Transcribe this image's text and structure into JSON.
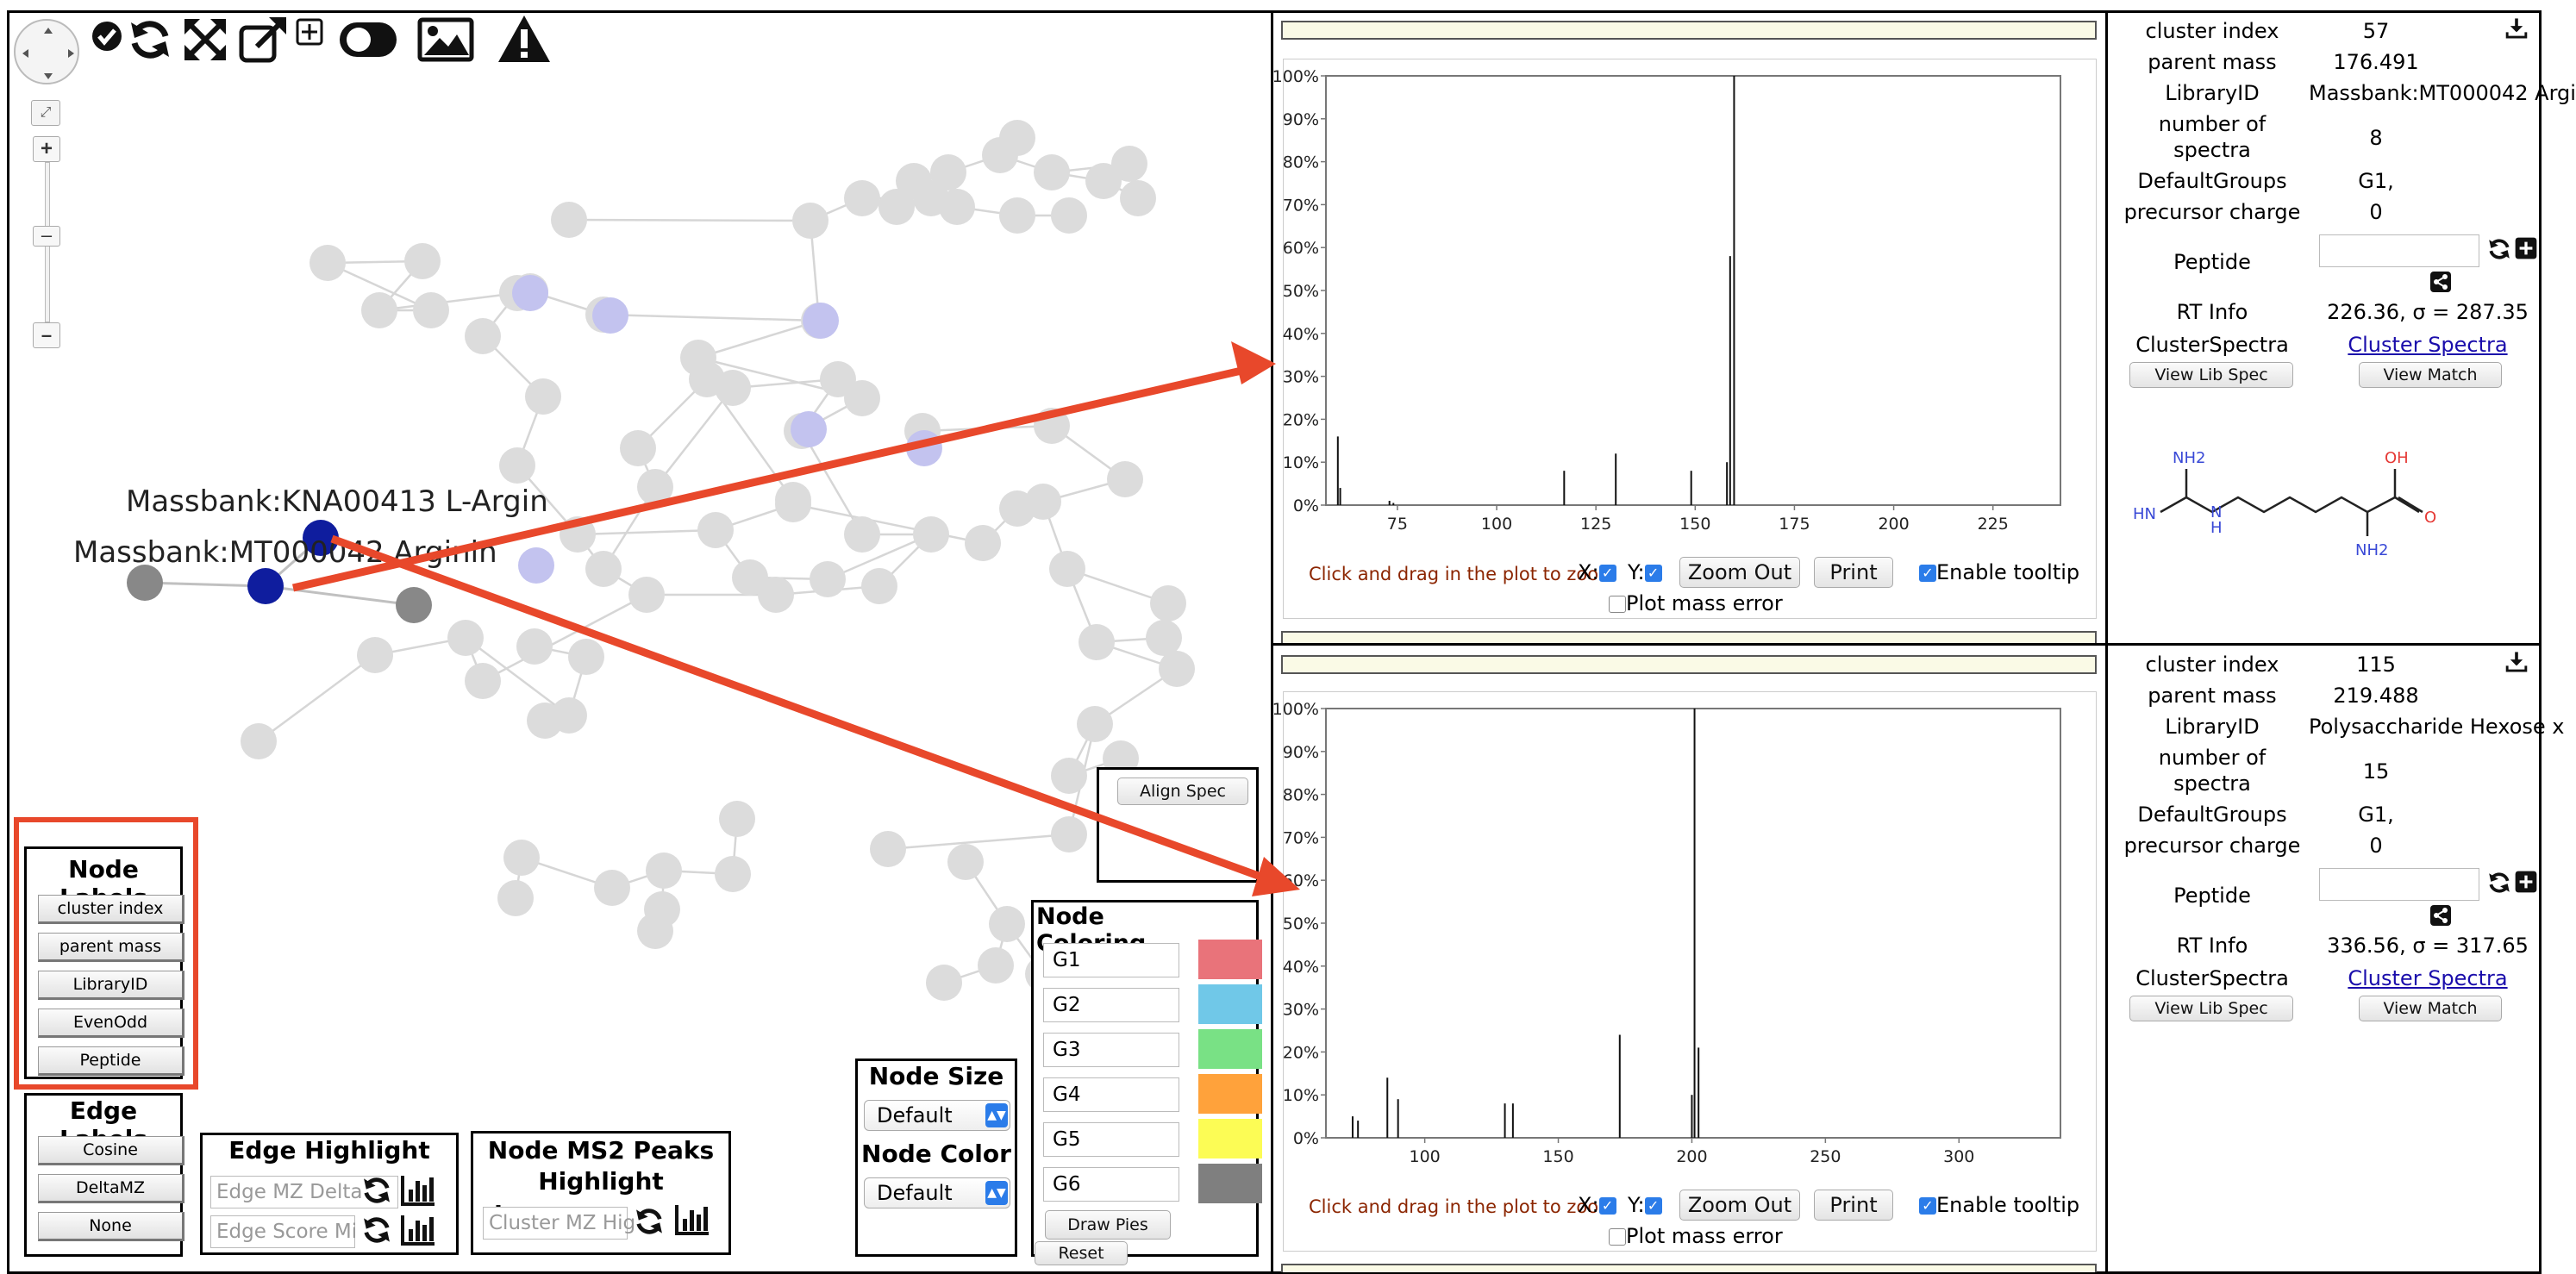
{
  "colors": {
    "node_default": "#dcdcdc",
    "node_highlight_light": "#c3c3ef",
    "node_selected": "#0f1d9e",
    "node_dark_grey": "#888888",
    "annotation_red": "#e8482b",
    "accent_blue": "#2b7ce9"
  },
  "toolbar": {
    "icons": [
      "navigation-pad-icon",
      "checkmark-icon",
      "refresh-icon",
      "expand-arrows-icon",
      "external-link-icon",
      "add-square-icon",
      "toggle-icon",
      "image-icon",
      "warning-icon"
    ]
  },
  "network": {
    "label_kna": "Massbank:KNA00413 L-Argin",
    "label_mt": "Massbank:MT000042 Arginin"
  },
  "node_labels": {
    "title": "Node Labels",
    "buttons": [
      "cluster index",
      "parent mass",
      "LibraryID",
      "EvenOdd",
      "Peptide"
    ]
  },
  "edge_labels": {
    "title": "Edge Labels",
    "buttons": [
      "Cosine",
      "DeltaMZ",
      "None"
    ]
  },
  "edge_highlight": {
    "title": "Edge Highlight",
    "placeholder_mz": "Edge MZ Delta",
    "placeholder_score": "Edge Score Mi"
  },
  "ms2_highlight": {
    "title_line1": "Node MS2 Peaks",
    "title_line2": "Highlight",
    "placeholder": "Cluster MZ Hig"
  },
  "node_size": {
    "title": "Node Size",
    "selected": "Default"
  },
  "node_color": {
    "title": "Node Color",
    "selected": "Default"
  },
  "align_spec": {
    "label": "Align Spec"
  },
  "node_coloring": {
    "title": "Node Coloring",
    "groups": [
      {
        "name": "G1",
        "color": "#e9737a"
      },
      {
        "name": "G2",
        "color": "#70c8e8"
      },
      {
        "name": "G3",
        "color": "#79e185"
      },
      {
        "name": "G4",
        "color": "#ffa23b"
      },
      {
        "name": "G5",
        "color": "#fcfc55"
      },
      {
        "name": "G6",
        "color": "#7f7f7f"
      }
    ],
    "draw_pies": "Draw Pies",
    "reset": "Reset"
  },
  "spectrum_controls": {
    "zoom_note": "Click and drag in the plot to zoom",
    "x_label": "X:",
    "y_label": "Y:",
    "zoom_out": "Zoom Out",
    "print": "Print",
    "enable_tooltip": "Enable tooltip",
    "plot_mass_error": "Plot mass error"
  },
  "spectrum_top": {
    "info": {
      "cluster_index_label": "cluster index",
      "cluster_index": "57",
      "parent_mass_label": "parent mass",
      "parent_mass": "176.491",
      "library_id_label": "LibraryID",
      "library_id": "Massbank:MT000042 Argi",
      "num_spectra_label_1": "number of",
      "num_spectra_label_2": "spectra",
      "num_spectra": "8",
      "default_groups_label": "DefaultGroups",
      "default_groups": "G1,",
      "precursor_charge_label": "precursor charge",
      "precursor_charge": "0",
      "peptide_label": "Peptide",
      "rt_info_label": "RT Info",
      "rt_info": "226.36, σ = 287.35",
      "cluster_spectra_label": "ClusterSpectra",
      "cluster_spectra_link": "Cluster Spectra",
      "view_lib_spec": "View Lib Spec",
      "view_match": "View Match"
    },
    "structure_labels": {
      "nh2_top": "NH2",
      "oh": "OH",
      "hn": "HN",
      "n": "N",
      "h": "H",
      "o": "O",
      "nh2_bottom": "NH2"
    }
  },
  "spectrum_bottom": {
    "info": {
      "cluster_index_label": "cluster index",
      "cluster_index": "115",
      "parent_mass_label": "parent mass",
      "parent_mass": "219.488",
      "library_id_label": "LibraryID",
      "library_id": "Polysaccharide Hexose x",
      "num_spectra_label_1": "number of",
      "num_spectra_label_2": "spectra",
      "num_spectra": "15",
      "default_groups_label": "DefaultGroups",
      "default_groups": "G1,",
      "precursor_charge_label": "precursor charge",
      "precursor_charge": "0",
      "peptide_label": "Peptide",
      "rt_info_label": "RT Info",
      "rt_info": "336.56, σ = 317.65",
      "cluster_spectra_label": "ClusterSpectra",
      "cluster_spectra_link": "Cluster Spectra",
      "view_lib_spec": "View Lib Spec",
      "view_match": "View Match"
    }
  },
  "chart_data": [
    {
      "type": "bar",
      "title": "",
      "xlabel": "",
      "ylabel": "",
      "xlim": [
        57,
        242
      ],
      "ylim": [
        0,
        100
      ],
      "x_ticks": [
        75,
        100,
        125,
        150,
        175,
        200,
        225
      ],
      "y_ticks": [
        "0%",
        "10%",
        "20%",
        "30%",
        "40%",
        "50%",
        "60%",
        "70%",
        "80%",
        "90%",
        "100%"
      ],
      "grid": false,
      "x": [
        60,
        60.6,
        73,
        74,
        117,
        130,
        149,
        158,
        158.8,
        159.8
      ],
      "values": [
        16,
        4,
        1,
        0.5,
        8,
        12,
        8,
        10,
        58,
        100
      ]
    },
    {
      "type": "bar",
      "title": "",
      "xlabel": "",
      "ylabel": "",
      "xlim": [
        63,
        338
      ],
      "ylim": [
        0,
        100
      ],
      "x_ticks": [
        100,
        150,
        200,
        250,
        300
      ],
      "y_ticks": [
        "0%",
        "10%",
        "20%",
        "30%",
        "40%",
        "50%",
        "60%",
        "70%",
        "80%",
        "90%",
        "100%"
      ],
      "grid": false,
      "x": [
        73,
        75,
        86,
        90,
        130,
        133,
        173,
        200,
        201,
        202.5
      ],
      "values": [
        5,
        4,
        14,
        9,
        8,
        8,
        24,
        10,
        100,
        21
      ]
    }
  ]
}
